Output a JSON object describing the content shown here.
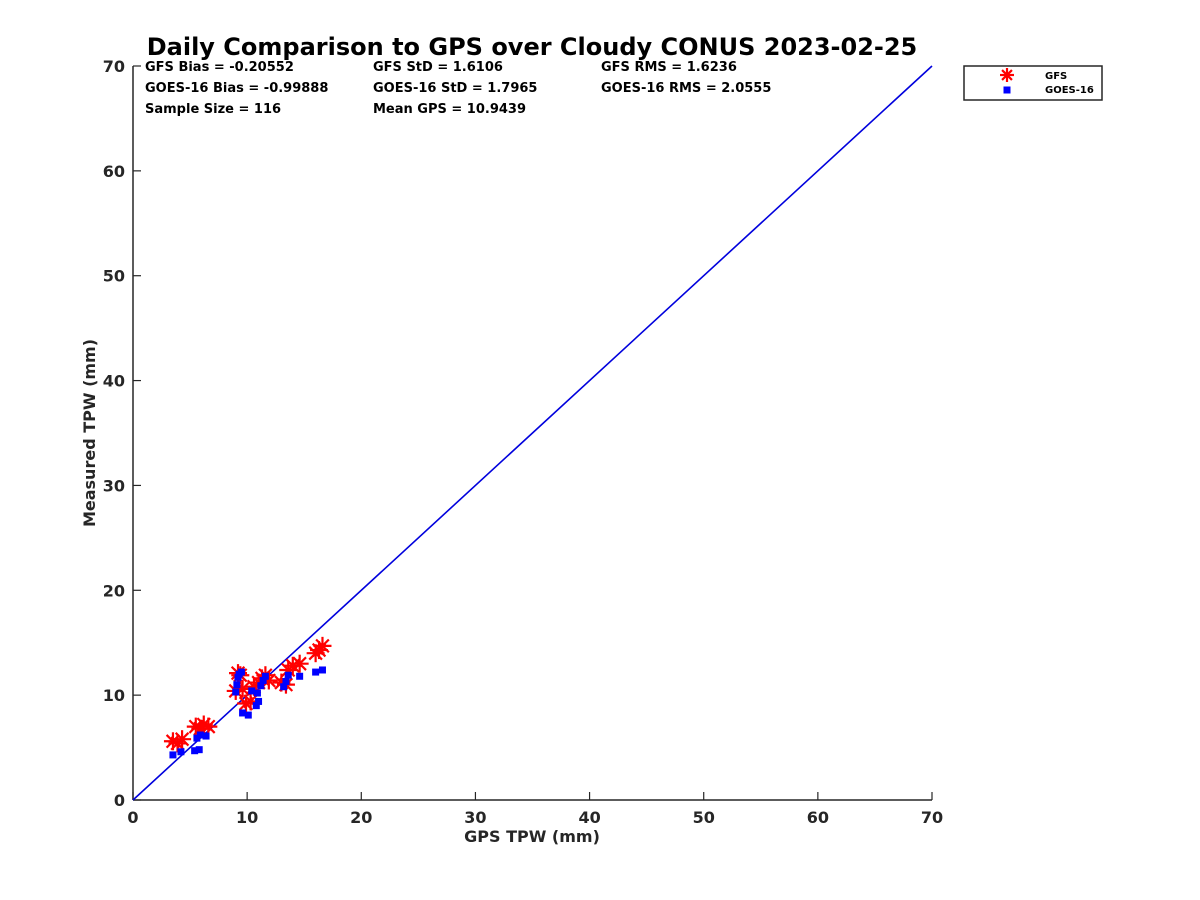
{
  "chart_data": {
    "type": "scatter",
    "title": "Daily Comparison to GPS over Cloudy CONUS 2023-02-25",
    "xlabel": "GPS TPW (mm)",
    "ylabel": "Measured TPW (mm)",
    "xlim": [
      0,
      70
    ],
    "ylim": [
      0,
      70
    ],
    "xticks": [
      "0",
      "10",
      "20",
      "30",
      "40",
      "50",
      "60",
      "70"
    ],
    "yticks": [
      "0",
      "10",
      "20",
      "30",
      "40",
      "50",
      "60",
      "70"
    ],
    "grid": false,
    "legend_position": "outside-top-right",
    "stats": {
      "gfs_bias": "GFS Bias = -0.20552",
      "gfs_std": "GFS StD = 1.6106",
      "gfs_rms": "GFS RMS = 1.6236",
      "goes_bias": "GOES-16 Bias = -0.99888",
      "goes_std": "GOES-16 StD = 1.7965",
      "goes_rms": "GOES-16 RMS = 2.0555",
      "sample_size": "Sample Size = 116",
      "mean_gps": "Mean GPS = 10.9439"
    },
    "reference_line": {
      "x": [
        0,
        70
      ],
      "y": [
        0,
        70
      ],
      "color": "#0000dd"
    },
    "series": [
      {
        "name": "GFS",
        "marker": "asterisk",
        "color": "#ff0000",
        "points": [
          [
            3.5,
            5.6
          ],
          [
            3.9,
            5.4
          ],
          [
            4.3,
            5.8
          ],
          [
            5.5,
            7.0
          ],
          [
            5.9,
            6.8
          ],
          [
            6.2,
            7.2
          ],
          [
            6.6,
            7.0
          ],
          [
            9.0,
            10.4
          ],
          [
            9.2,
            12.1
          ],
          [
            9.4,
            11.9
          ],
          [
            9.6,
            10.6
          ],
          [
            9.9,
            9.2
          ],
          [
            10.3,
            9.4
          ],
          [
            10.6,
            10.8
          ],
          [
            11.0,
            11.2
          ],
          [
            11.3,
            11.6
          ],
          [
            11.6,
            11.9
          ],
          [
            11.9,
            11.4
          ],
          [
            13.0,
            11.2
          ],
          [
            13.4,
            11.0
          ],
          [
            13.6,
            12.4
          ],
          [
            14.0,
            12.8
          ],
          [
            14.6,
            13.0
          ],
          [
            16.0,
            14.0
          ],
          [
            16.3,
            14.3
          ],
          [
            16.6,
            14.7
          ]
        ]
      },
      {
        "name": "GOES-16",
        "marker": "square",
        "color": "#0000ff",
        "points": [
          [
            3.5,
            4.3
          ],
          [
            4.2,
            4.6
          ],
          [
            5.4,
            4.7
          ],
          [
            5.8,
            4.8
          ],
          [
            5.6,
            5.9
          ],
          [
            5.9,
            6.2
          ],
          [
            6.4,
            6.1
          ],
          [
            9.0,
            10.3
          ],
          [
            9.1,
            11.0
          ],
          [
            9.2,
            11.7
          ],
          [
            9.3,
            12.0
          ],
          [
            9.5,
            12.2
          ],
          [
            9.6,
            8.3
          ],
          [
            10.1,
            8.1
          ],
          [
            10.4,
            10.4
          ],
          [
            10.8,
            9.0
          ],
          [
            11.0,
            9.4
          ],
          [
            10.9,
            10.2
          ],
          [
            11.2,
            10.9
          ],
          [
            11.4,
            11.4
          ],
          [
            11.6,
            11.8
          ],
          [
            13.2,
            10.8
          ],
          [
            13.4,
            11.3
          ],
          [
            13.6,
            11.9
          ],
          [
            14.6,
            11.8
          ],
          [
            16.0,
            12.2
          ],
          [
            16.6,
            12.4
          ]
        ]
      }
    ]
  }
}
